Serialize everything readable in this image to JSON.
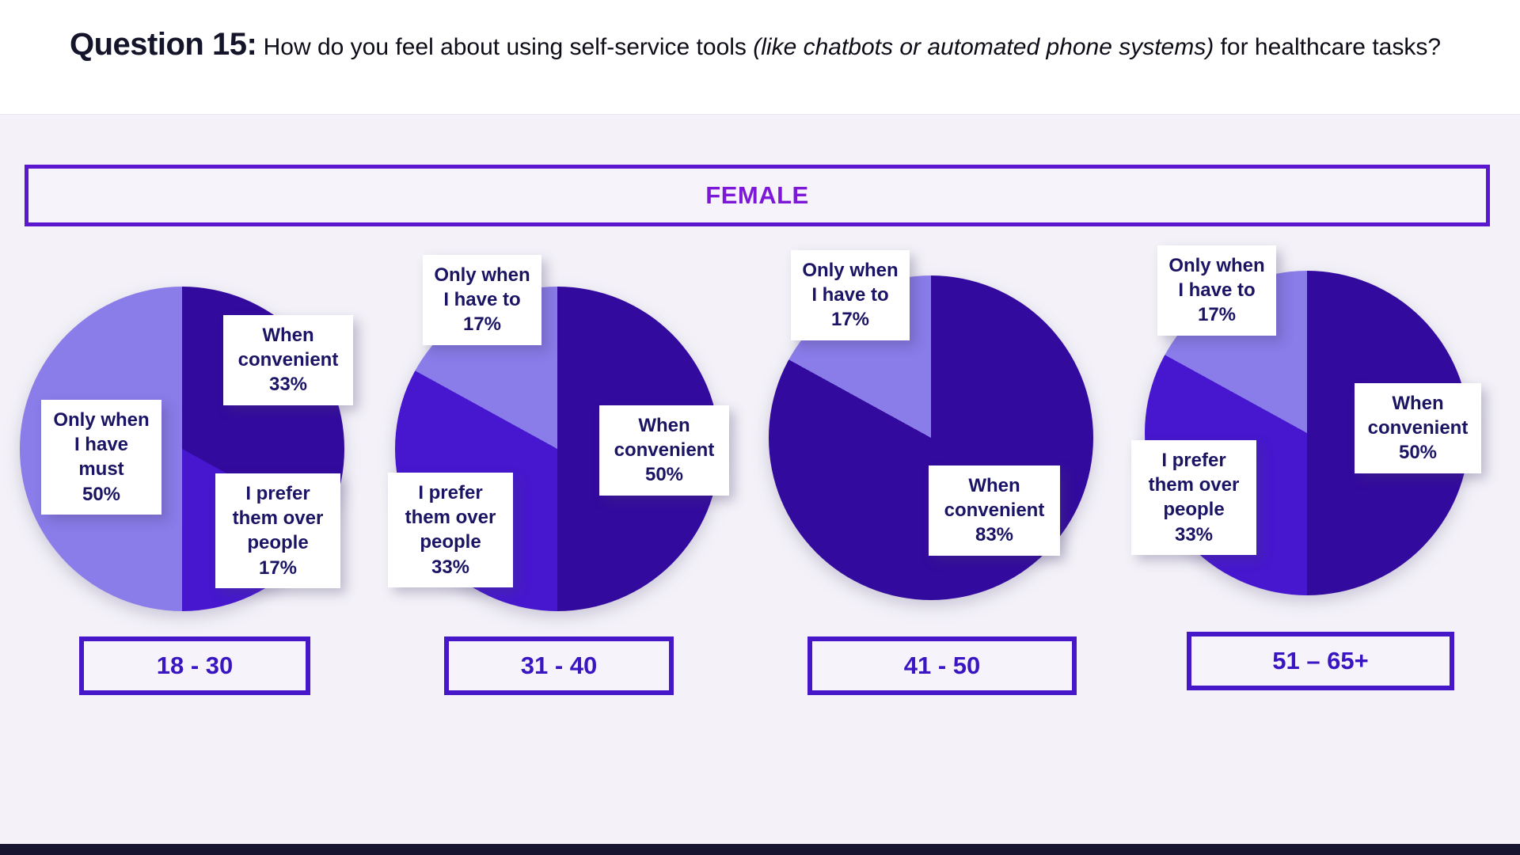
{
  "header": {
    "q_label": "Question 15:",
    "part1": " How do you feel about using self-service tools ",
    "italic": "(like chatbots or automated phone systems)",
    "part2": " for healthcare tasks?"
  },
  "banner": {
    "label": "FEMALE"
  },
  "colors": {
    "slice_dark": "#330a9e",
    "slice_mid": "#4617cf",
    "slice_light": "#8a7ce9",
    "banner_border": "#5a17cf",
    "banner_text": "#7d18d8",
    "age_border": "#4517c9",
    "age_text": "#3a16c2",
    "label_text": "#1b1464"
  },
  "chart_data": [
    {
      "type": "pie",
      "age_group": "18 - 30",
      "slices": [
        {
          "label": "When convenient",
          "pct": "33%",
          "value": 33,
          "color": "#330a9e"
        },
        {
          "label": "I prefer them over people",
          "pct": "17%",
          "value": 17,
          "color": "#4617cf"
        },
        {
          "label": "Only when I have must",
          "pct": "50%",
          "value": 50,
          "color": "#8a7ce9"
        }
      ]
    },
    {
      "type": "pie",
      "age_group": "31 - 40",
      "slices": [
        {
          "label": "When convenient",
          "pct": "50%",
          "value": 50,
          "color": "#330a9e"
        },
        {
          "label": "I prefer them over people",
          "pct": "33%",
          "value": 33,
          "color": "#4617cf"
        },
        {
          "label": "Only when I have to",
          "pct": "17%",
          "value": 17,
          "color": "#8a7ce9"
        }
      ]
    },
    {
      "type": "pie",
      "age_group": "41 - 50",
      "slices": [
        {
          "label": "When convenient",
          "pct": "83%",
          "value": 83,
          "color": "#330a9e"
        },
        {
          "label": "Only when I have to",
          "pct": "17%",
          "value": 17,
          "color": "#8a7ce9"
        }
      ]
    },
    {
      "type": "pie",
      "age_group": "51 – 65+",
      "slices": [
        {
          "label": "When convenient",
          "pct": "50%",
          "value": 50,
          "color": "#330a9e"
        },
        {
          "label": "I prefer them over people",
          "pct": "33%",
          "value": 33,
          "color": "#4617cf"
        },
        {
          "label": "Only when I have to",
          "pct": "17%",
          "value": 17,
          "color": "#8a7ce9"
        }
      ]
    }
  ]
}
